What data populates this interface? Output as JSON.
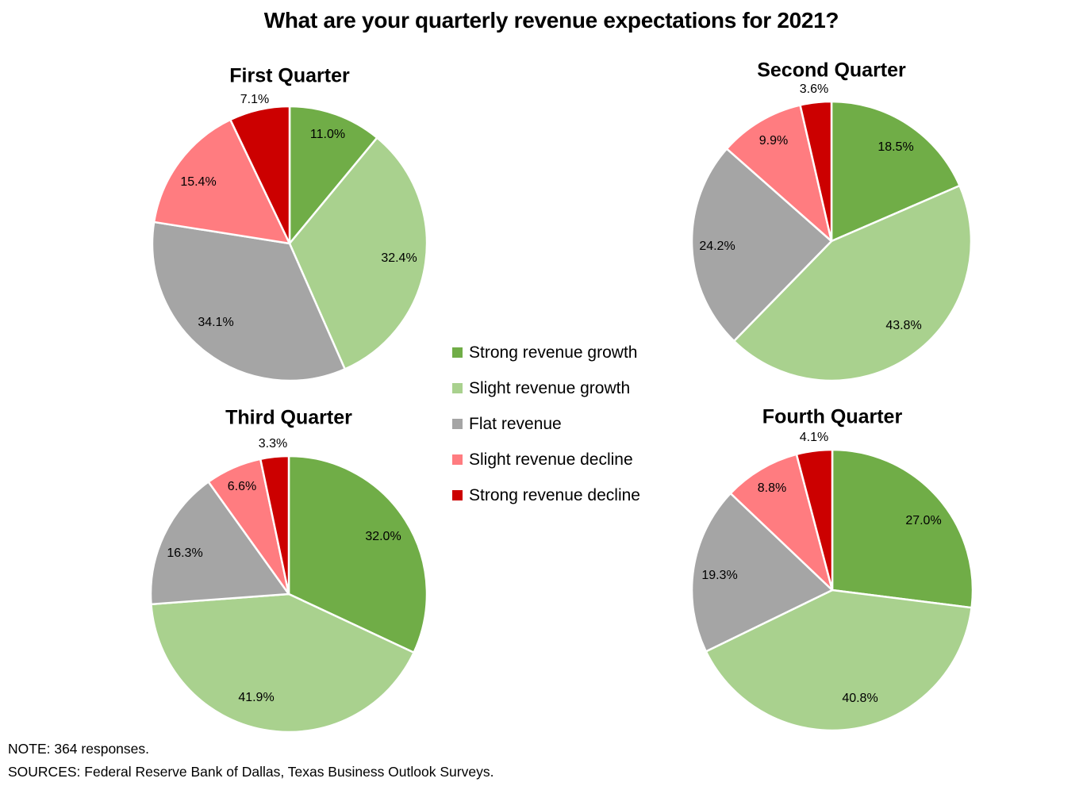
{
  "chart_data": {
    "type": "pie",
    "title": "What are your quarterly revenue expectations for 2021?",
    "categories": [
      "Strong revenue growth",
      "Slight revenue growth",
      "Flat revenue",
      "Slight revenue decline",
      "Strong revenue decline"
    ],
    "colors": [
      "#70AD47",
      "#A9D18E",
      "#A5A5A5",
      "#FF7C80",
      "#CC0000"
    ],
    "legend_position": "center",
    "charts": [
      {
        "title": "First Quarter",
        "values": [
          11.0,
          32.4,
          34.1,
          15.4,
          7.1
        ],
        "labels": [
          "11.0%",
          "32.4%",
          "34.1%",
          "15.4%",
          "7.1%"
        ]
      },
      {
        "title": "Second Quarter",
        "values": [
          18.5,
          43.8,
          24.2,
          9.9,
          3.6
        ],
        "labels": [
          "18.5%",
          "43.8%",
          "24.2%",
          "9.9%",
          "3.6%"
        ]
      },
      {
        "title": "Third Quarter",
        "values": [
          32.0,
          41.9,
          16.3,
          6.6,
          3.3
        ],
        "labels": [
          "32.0%",
          "41.9%",
          "16.3%",
          "6.6%",
          "3.3%"
        ]
      },
      {
        "title": "Fourth Quarter",
        "values": [
          27.0,
          40.8,
          19.3,
          8.8,
          4.1
        ],
        "labels": [
          "27.0%",
          "40.8%",
          "19.3%",
          "8.8%",
          "4.1%"
        ]
      }
    ],
    "unit": "%"
  },
  "legend": {
    "items": [
      {
        "label": "Strong revenue growth",
        "color": "#70AD47"
      },
      {
        "label": "Slight revenue growth",
        "color": "#A9D18E"
      },
      {
        "label": "Flat revenue",
        "color": "#A5A5A5"
      },
      {
        "label": "Slight revenue decline",
        "color": "#FF7C80"
      },
      {
        "label": "Strong revenue decline",
        "color": "#CC0000"
      }
    ]
  },
  "footnotes": {
    "note": "NOTE: 364 responses.",
    "sources": "SOURCES: Federal Reserve Bank of Dallas, Texas Business Outlook Surveys."
  }
}
